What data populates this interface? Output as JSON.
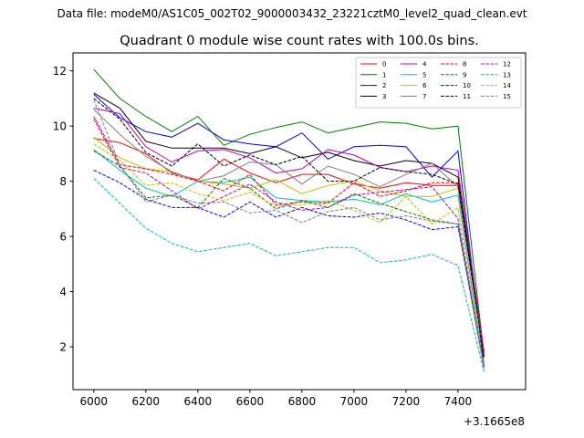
{
  "suptitle": "Data file: modeM0/AS1C05_002T02_9000003432_23221cztM0_level2_quad_clean.evt",
  "chart_data": {
    "type": "line",
    "title": "Quadrant 0 module wise count rates with 100.0s bins.",
    "xlabel": "",
    "ylabel": "",
    "x_offset_label": "+3.1665e8",
    "xlim": [
      5920,
      7660
    ],
    "ylim": [
      0.45,
      12.65
    ],
    "xticks": [
      6000,
      6200,
      6400,
      6600,
      6800,
      7000,
      7200,
      7400
    ],
    "yticks": [
      2,
      4,
      6,
      8,
      10,
      12
    ],
    "x": [
      6000,
      6100,
      6200,
      6300,
      6400,
      6500,
      6600,
      6700,
      6800,
      6900,
      7000,
      7100,
      7200,
      7300,
      7400,
      7500
    ],
    "legend": {
      "location": "top-right",
      "columns": 4
    },
    "series": [
      {
        "name": "0",
        "color": "#ff0000",
        "dash": "solid",
        "values": [
          9.55,
          9.4,
          9.0,
          8.3,
          8.05,
          8.8,
          8.3,
          7.95,
          8.25,
          8.25,
          7.9,
          7.75,
          7.95,
          7.85,
          7.85,
          1.7
        ]
      },
      {
        "name": "1",
        "color": "#008000",
        "dash": "solid",
        "values": [
          12.05,
          11.0,
          10.35,
          9.8,
          10.35,
          9.3,
          9.7,
          9.95,
          10.15,
          9.75,
          9.95,
          10.15,
          10.1,
          9.9,
          10.0,
          1.7
        ]
      },
      {
        "name": "2",
        "color": "#0000ff",
        "dash": "solid",
        "values": [
          11.15,
          10.3,
          9.8,
          9.6,
          10.1,
          9.5,
          9.35,
          9.25,
          9.75,
          8.8,
          9.25,
          9.3,
          9.25,
          8.15,
          9.1,
          1.3
        ]
      },
      {
        "name": "3",
        "color": "#000000",
        "dash": "solid",
        "values": [
          11.2,
          10.65,
          9.45,
          9.2,
          9.2,
          9.2,
          9.0,
          9.25,
          8.85,
          9.05,
          8.75,
          8.55,
          8.75,
          8.65,
          8.15,
          1.75
        ]
      },
      {
        "name": "4",
        "color": "#c000c0",
        "dash": "solid",
        "values": [
          10.65,
          10.45,
          9.25,
          8.7,
          9.1,
          9.15,
          8.85,
          8.3,
          8.45,
          9.15,
          8.95,
          8.5,
          8.35,
          8.55,
          8.4,
          1.85
        ]
      },
      {
        "name": "5",
        "color": "#00bfbf",
        "dash": "solid",
        "values": [
          9.15,
          8.4,
          7.75,
          7.45,
          8.0,
          7.95,
          8.15,
          7.4,
          7.3,
          7.25,
          7.35,
          7.15,
          7.55,
          7.25,
          7.5,
          1.25
        ]
      },
      {
        "name": "6",
        "color": "#bfbf00",
        "dash": "solid",
        "values": [
          9.6,
          8.85,
          8.45,
          8.35,
          8.0,
          7.9,
          7.75,
          8.05,
          7.55,
          7.85,
          8.0,
          7.65,
          7.45,
          7.45,
          7.75,
          1.65
        ]
      },
      {
        "name": "7",
        "color": "#808080",
        "dash": "solid",
        "values": [
          10.6,
          9.7,
          8.9,
          8.35,
          8.0,
          8.2,
          8.7,
          8.6,
          7.9,
          8.55,
          8.25,
          7.8,
          8.25,
          8.65,
          7.8,
          1.65
        ]
      },
      {
        "name": "8",
        "color": "#ff0000",
        "dash": "dashed",
        "values": [
          10.35,
          8.6,
          8.45,
          8.25,
          8.0,
          7.65,
          8.25,
          7.15,
          7.25,
          7.2,
          7.95,
          7.45,
          7.65,
          7.95,
          7.95,
          1.6
        ]
      },
      {
        "name": "9",
        "color": "#008000",
        "dash": "dashed",
        "values": [
          9.1,
          8.55,
          7.4,
          7.5,
          7.05,
          8.1,
          7.75,
          7.0,
          7.3,
          7.05,
          7.55,
          7.2,
          6.9,
          6.6,
          6.45,
          1.35
        ]
      },
      {
        "name": "10",
        "color": "#0000ff",
        "dash": "dashed",
        "values": [
          8.4,
          7.95,
          7.35,
          7.05,
          7.05,
          6.7,
          7.25,
          6.7,
          7.05,
          6.75,
          6.7,
          6.85,
          6.6,
          6.25,
          6.35,
          1.3
        ]
      },
      {
        "name": "11",
        "color": "#000000",
        "dash": "dashed",
        "values": [
          11.0,
          10.25,
          9.05,
          8.55,
          9.35,
          8.55,
          8.95,
          8.6,
          8.9,
          8.0,
          8.0,
          8.5,
          8.35,
          8.25,
          7.9,
          1.6
        ]
      },
      {
        "name": "12",
        "color": "#c000c0",
        "dash": "dashed",
        "values": [
          10.25,
          8.5,
          8.3,
          7.65,
          7.0,
          7.45,
          7.9,
          7.25,
          6.95,
          7.05,
          7.5,
          7.6,
          7.7,
          7.8,
          6.65,
          1.3
        ]
      },
      {
        "name": "13",
        "color": "#00bfbf",
        "dash": "dashed",
        "values": [
          8.1,
          7.2,
          6.3,
          5.75,
          5.45,
          5.6,
          5.75,
          5.3,
          5.45,
          5.6,
          5.6,
          5.05,
          5.15,
          5.35,
          4.95,
          1.1
        ]
      },
      {
        "name": "14",
        "color": "#bfbf00",
        "dash": "dashed",
        "values": [
          9.35,
          8.75,
          7.85,
          7.95,
          7.55,
          7.3,
          7.6,
          7.1,
          7.15,
          7.3,
          6.95,
          6.5,
          7.45,
          6.45,
          7.05,
          1.2
        ]
      },
      {
        "name": "15",
        "color": "#808080",
        "dash": "dashed",
        "values": [
          10.95,
          8.6,
          7.25,
          7.5,
          7.2,
          7.25,
          6.85,
          6.95,
          6.5,
          6.9,
          7.05,
          6.6,
          6.75,
          6.55,
          6.45,
          1.15
        ]
      }
    ]
  }
}
